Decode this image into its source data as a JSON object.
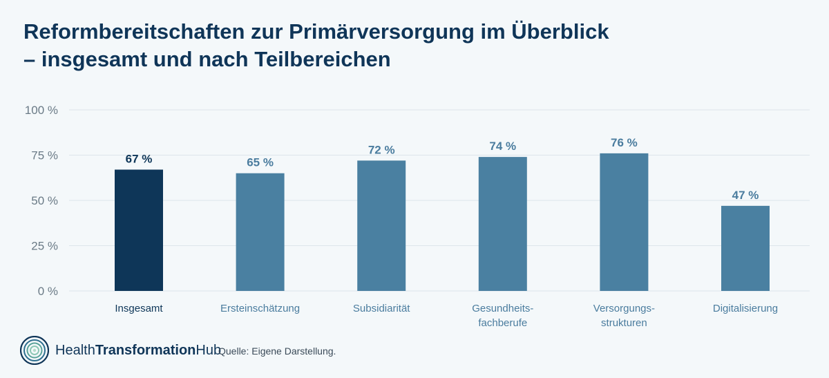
{
  "title": {
    "line1": "Reformbereitschaften zur Primärversorgung im Überblick",
    "line2": "– insgesamt und nach Teilbereichen"
  },
  "colors": {
    "highlight": "#0e3658",
    "bar": "#4a80a1",
    "highlight_label": "#0e3658",
    "label": "#4a7c9e",
    "axis_text": "#6a7a86",
    "grid": "#dde5ea"
  },
  "chart_data": {
    "type": "bar",
    "categories": [
      [
        "Insgesamt"
      ],
      [
        "Ersteinschätzung"
      ],
      [
        "Subsidiarität"
      ],
      [
        "Gesundheits-",
        "fachberufe"
      ],
      [
        "Versorgungs-",
        "strukturen"
      ],
      [
        "Digitalisierung"
      ]
    ],
    "values": [
      67,
      65,
      72,
      74,
      76,
      47
    ],
    "value_labels": [
      "67 %",
      "65 %",
      "72 %",
      "74 %",
      "76 %",
      "47 %"
    ],
    "highlight_index": 0,
    "yticks": [
      0,
      25,
      50,
      75,
      100
    ],
    "ytick_labels": [
      "0 %",
      "25 %",
      "50 %",
      "75 %",
      "100 %"
    ],
    "ylim": [
      0,
      100
    ],
    "grid": true
  },
  "footer": {
    "brand_regular_1": "Health",
    "brand_bold": "Transformation",
    "brand_regular_2": "Hub",
    "logo_icon": "concentric-circles-logo",
    "source": "Quelle: Eigene Darstellung."
  }
}
